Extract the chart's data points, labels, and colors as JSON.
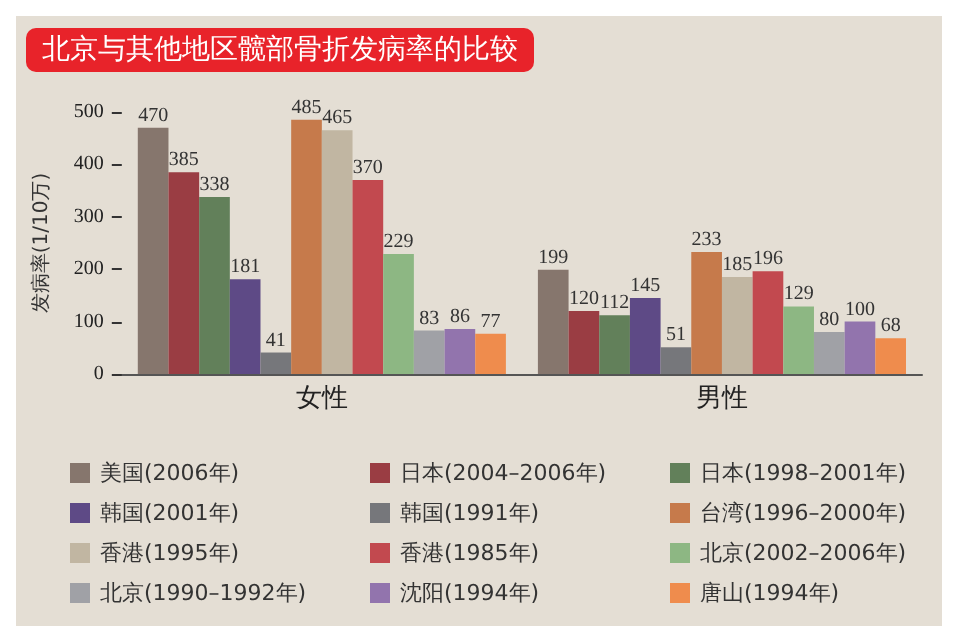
{
  "chart_data": {
    "type": "bar",
    "title": "北京与其他地区髋部骨折发病率的比较",
    "ylabel": "发病率(1/10万)",
    "categories": [
      "女性",
      "男性"
    ],
    "series": [
      {
        "name": "美国(2006年)",
        "color": "#86766d",
        "values": [
          470,
          199
        ]
      },
      {
        "name": "日本(2004–2006年)",
        "color": "#9a3d43",
        "values": [
          385,
          120
        ]
      },
      {
        "name": "日本(1998–2001年)",
        "color": "#62805a",
        "values": [
          338,
          112
        ]
      },
      {
        "name": "韩国(2001年)",
        "color": "#5e4a86",
        "values": [
          181,
          145
        ]
      },
      {
        "name": "韩国(1991年)",
        "color": "#76777b",
        "values": [
          41,
          51
        ]
      },
      {
        "name": "台湾(1996–2000年)",
        "color": "#c67a4b",
        "values": [
          485,
          233
        ]
      },
      {
        "name": "香港(1995年)",
        "color": "#c1b6a2",
        "values": [
          465,
          185
        ]
      },
      {
        "name": "香港(1985年)",
        "color": "#c2494f",
        "values": [
          370,
          196
        ]
      },
      {
        "name": "北京(2002–2006年)",
        "color": "#8db783",
        "values": [
          229,
          129
        ]
      },
      {
        "name": "北京(1990–1992年)",
        "color": "#a0a1a6",
        "values": [
          83,
          80
        ]
      },
      {
        "name": "沈阳(1994年)",
        "color": "#9274ad",
        "values": [
          86,
          100
        ]
      },
      {
        "name": "唐山(1994年)",
        "color": "#ef8c4d",
        "values": [
          77,
          68
        ]
      }
    ],
    "ylim": [
      0,
      500
    ],
    "yticks": [
      0,
      100,
      200,
      300,
      400,
      500
    ],
    "grid": false,
    "legend": "bottom",
    "data_labels": true
  }
}
